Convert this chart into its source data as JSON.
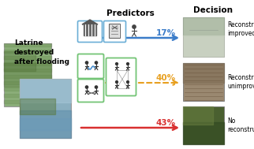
{
  "title": "Decision",
  "left_text_lines": "Latrine\ndestroyed\nafter flooding",
  "predictors_label": "Predictors",
  "arrow1_color": "#3B7CC9",
  "arrow2_color": "#E8A020",
  "arrow3_color": "#D93030",
  "pct1": "17%",
  "pct2": "40%",
  "pct3": "43%",
  "label1": "Reconstruct\nimproved",
  "label2": "Reconstruct\nunimproved",
  "label3": "No\nreconstruction",
  "bg_color": "#FFFFFF",
  "icon_box_blue": "#6BAED6",
  "icon_box_green": "#74C476",
  "photo1_top_color": "#8BAE7A",
  "photo1_bot_color": "#A8C090",
  "photo2_top_color": "#7BA8C0",
  "photo2_bot_color": "#9ABCD0",
  "rphoto1_color": "#B0C4A8",
  "rphoto2_color": "#9A8870",
  "rphoto3_color": "#506840"
}
